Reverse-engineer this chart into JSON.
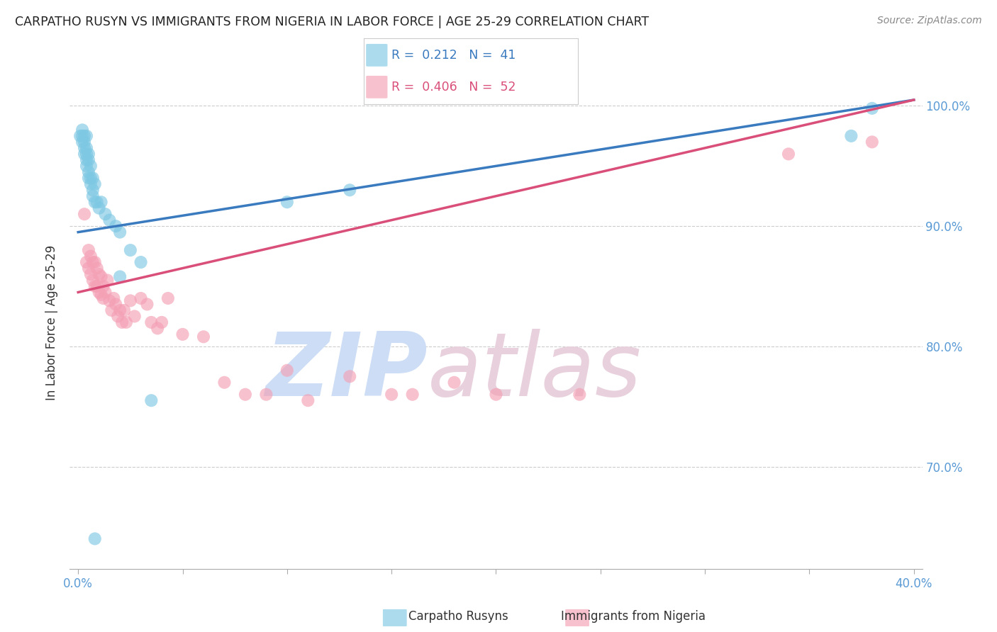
{
  "title": "CARPATHO RUSYN VS IMMIGRANTS FROM NIGERIA IN LABOR FORCE | AGE 25-29 CORRELATION CHART",
  "source": "Source: ZipAtlas.com",
  "ylabel": "In Labor Force | Age 25-29",
  "xlim": [
    -0.004,
    0.404
  ],
  "ylim": [
    0.615,
    1.025
  ],
  "yticks": [
    0.7,
    0.8,
    0.9,
    1.0
  ],
  "xticks": [
    0.0,
    0.05,
    0.1,
    0.15,
    0.2,
    0.25,
    0.3,
    0.35,
    0.4
  ],
  "blue_R": 0.212,
  "blue_N": 41,
  "pink_R": 0.406,
  "pink_N": 52,
  "blue_color": "#7ec8e3",
  "pink_color": "#f4a0b5",
  "blue_line_color": "#3a7abf",
  "pink_line_color": "#d94f7a",
  "legend_label_blue": "Carpatho Rusyns",
  "legend_label_pink": "Immigrants from Nigeria",
  "watermark_blue": "#ddeeff",
  "watermark_pink": "#e8c8d8",
  "grid_color": "#cccccc",
  "background_color": "#ffffff",
  "axis_color": "#5b9bd5",
  "blue_scatter_x": [
    0.001,
    0.002,
    0.002,
    0.002,
    0.003,
    0.003,
    0.003,
    0.003,
    0.004,
    0.004,
    0.004,
    0.004,
    0.004,
    0.005,
    0.005,
    0.005,
    0.005,
    0.006,
    0.006,
    0.006,
    0.007,
    0.007,
    0.007,
    0.008,
    0.008,
    0.009,
    0.01,
    0.011,
    0.013,
    0.015,
    0.018,
    0.02,
    0.025,
    0.03,
    0.035,
    0.1,
    0.13,
    0.37,
    0.38,
    0.02,
    0.008
  ],
  "blue_scatter_y": [
    0.975,
    0.98,
    0.975,
    0.97,
    0.975,
    0.97,
    0.965,
    0.96,
    0.975,
    0.965,
    0.96,
    0.955,
    0.95,
    0.96,
    0.955,
    0.945,
    0.94,
    0.95,
    0.94,
    0.935,
    0.94,
    0.93,
    0.925,
    0.935,
    0.92,
    0.92,
    0.915,
    0.92,
    0.91,
    0.905,
    0.9,
    0.895,
    0.88,
    0.87,
    0.755,
    0.92,
    0.93,
    0.975,
    0.998,
    0.858,
    0.64
  ],
  "pink_scatter_x": [
    0.003,
    0.004,
    0.005,
    0.005,
    0.006,
    0.006,
    0.007,
    0.007,
    0.008,
    0.008,
    0.009,
    0.009,
    0.01,
    0.01,
    0.011,
    0.011,
    0.012,
    0.012,
    0.013,
    0.014,
    0.015,
    0.016,
    0.017,
    0.018,
    0.019,
    0.02,
    0.021,
    0.022,
    0.023,
    0.025,
    0.027,
    0.03,
    0.033,
    0.035,
    0.038,
    0.04,
    0.043,
    0.05,
    0.06,
    0.07,
    0.08,
    0.09,
    0.1,
    0.11,
    0.13,
    0.15,
    0.16,
    0.18,
    0.2,
    0.24,
    0.34,
    0.38
  ],
  "pink_scatter_y": [
    0.91,
    0.87,
    0.88,
    0.865,
    0.875,
    0.86,
    0.87,
    0.855,
    0.87,
    0.85,
    0.865,
    0.85,
    0.86,
    0.845,
    0.858,
    0.843,
    0.85,
    0.84,
    0.845,
    0.855,
    0.838,
    0.83,
    0.84,
    0.835,
    0.825,
    0.83,
    0.82,
    0.83,
    0.82,
    0.838,
    0.825,
    0.84,
    0.835,
    0.82,
    0.815,
    0.82,
    0.84,
    0.81,
    0.808,
    0.77,
    0.76,
    0.76,
    0.78,
    0.755,
    0.775,
    0.76,
    0.76,
    0.77,
    0.76,
    0.76,
    0.96,
    0.97
  ]
}
